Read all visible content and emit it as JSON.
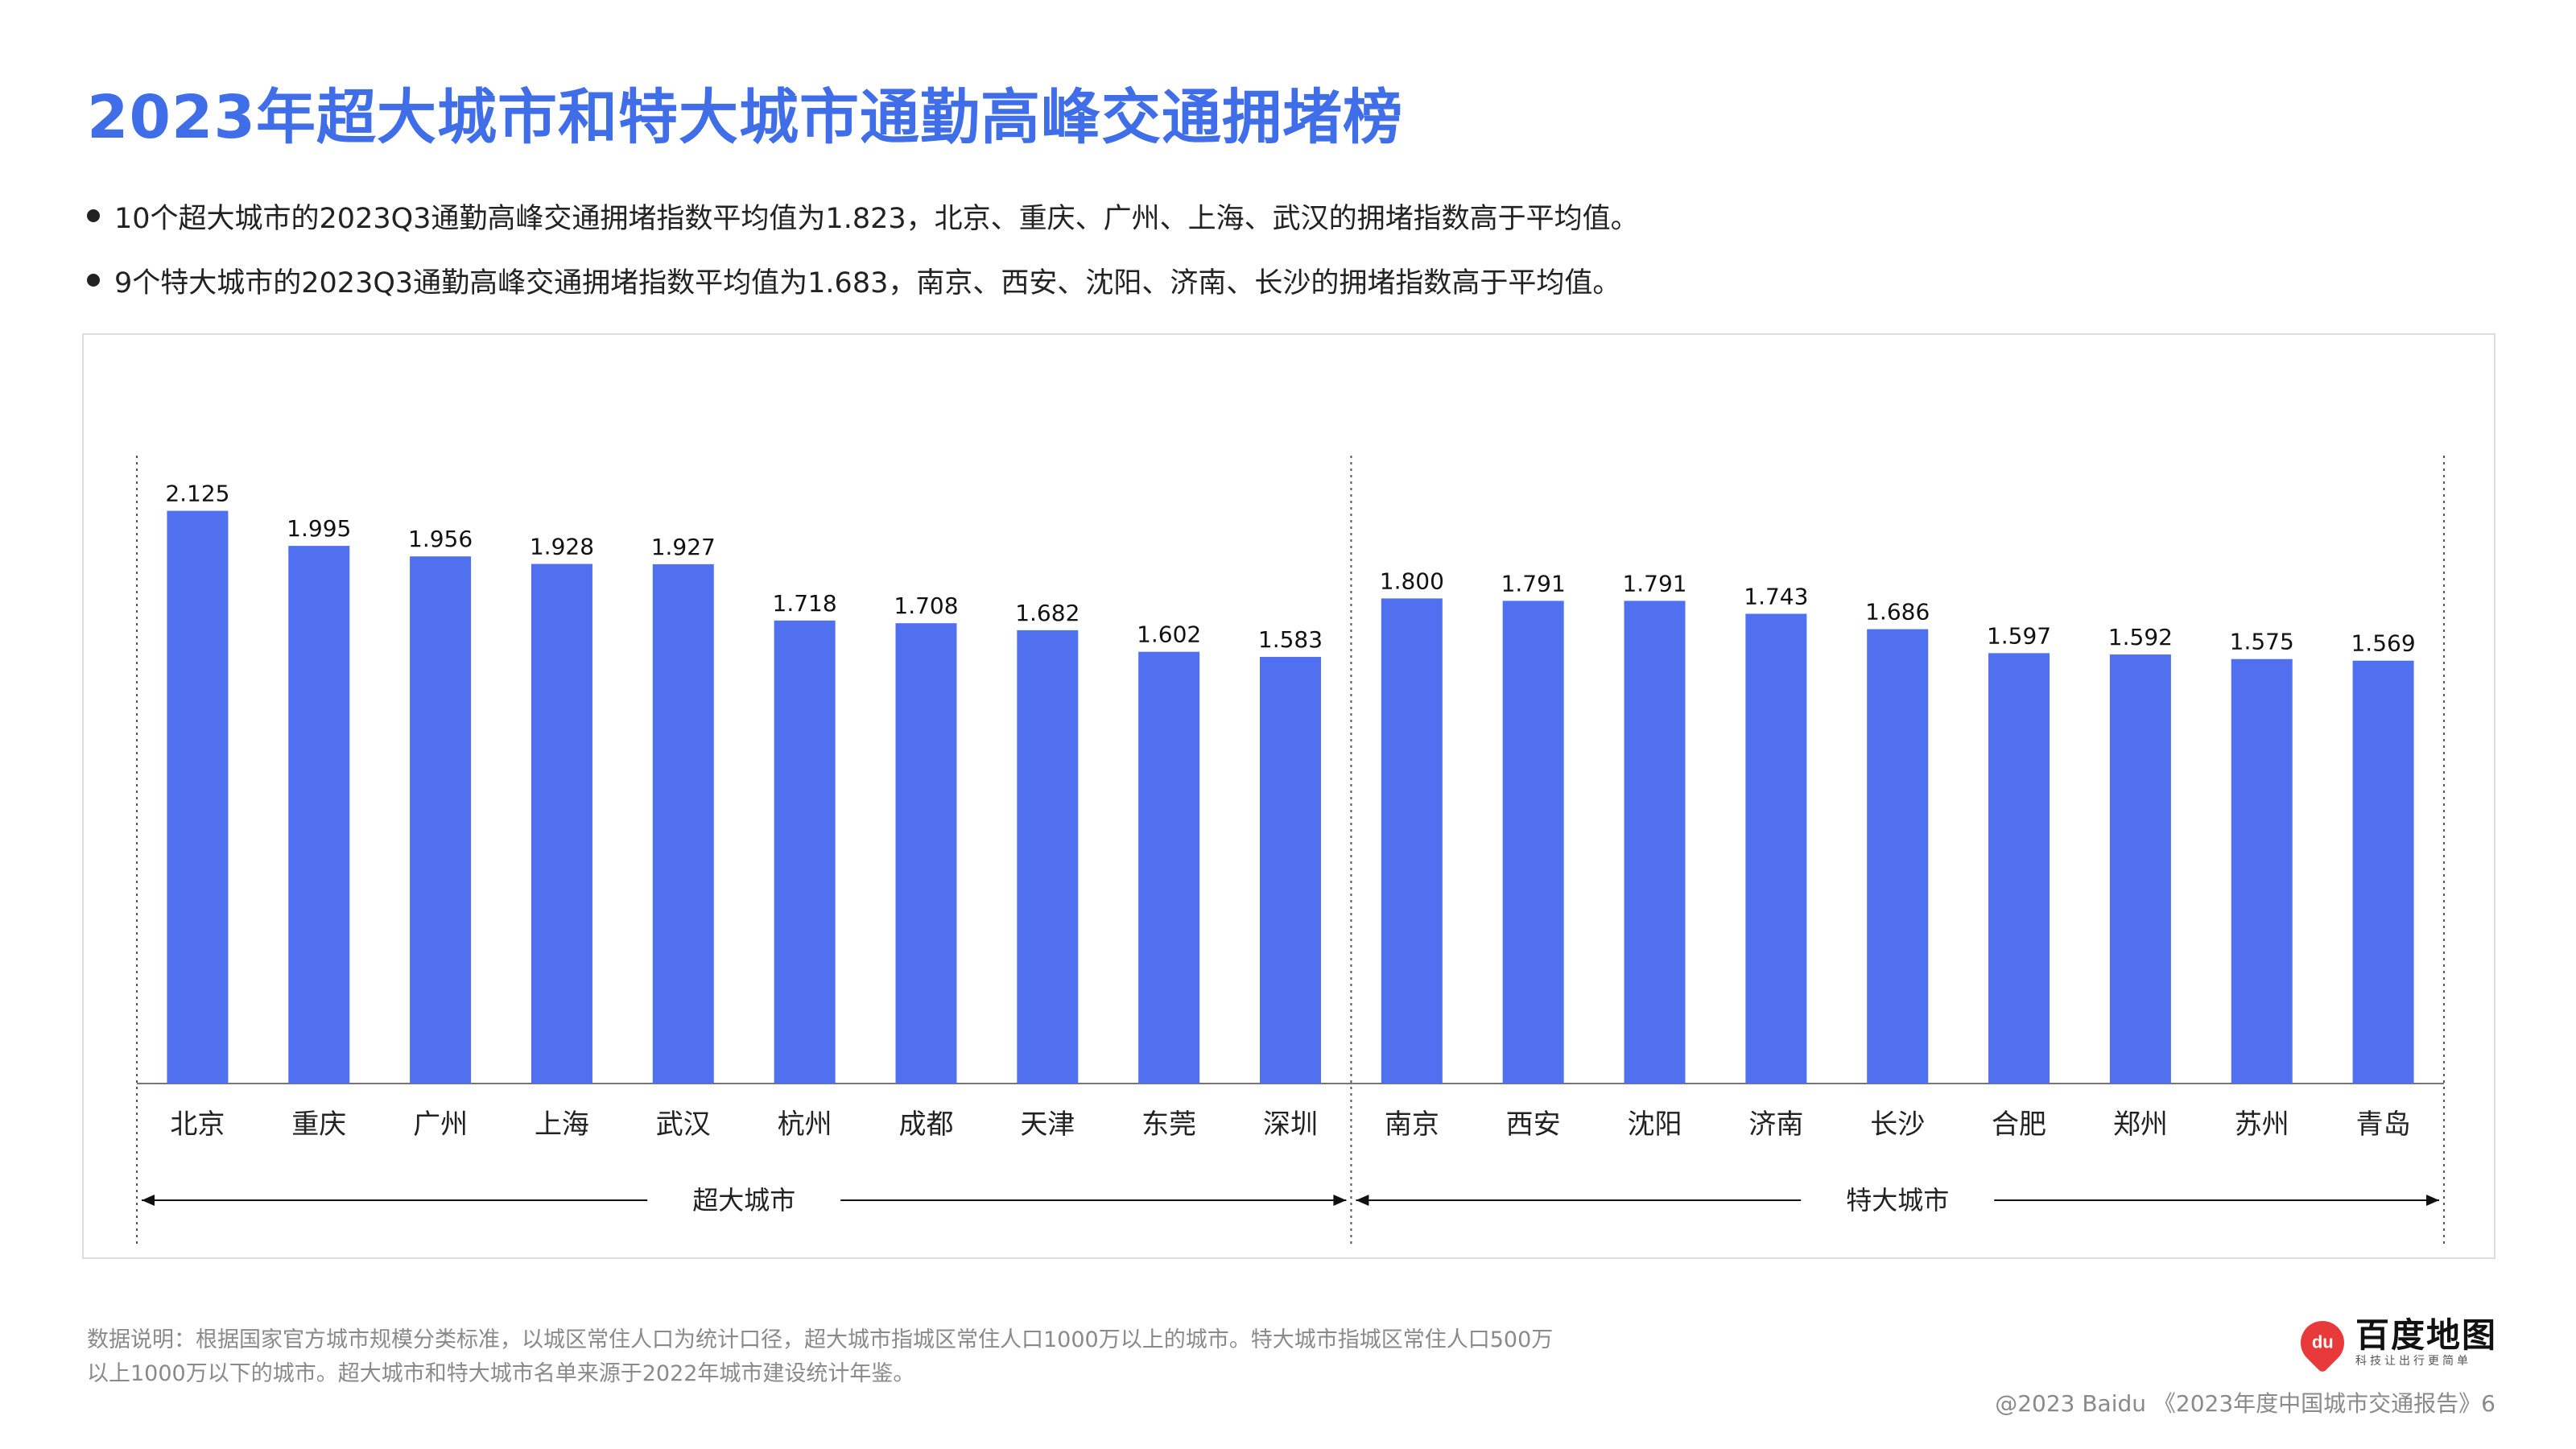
{
  "title": "2023年超大城市和特大城市通勤高峰交通拥堵榜",
  "bullets": [
    "10个超大城市的2023Q3通勤高峰交通拥堵指数平均值为1.823，北京、重庆、广州、上海、武汉的拥堵指数高于平均值。",
    "9个特大城市的2023Q3通勤高峰交通拥堵指数平均值为1.683，南京、西安、沈阳、济南、长沙的拥堵指数高于平均值。"
  ],
  "chart_data": {
    "type": "bar",
    "categories": [
      "北京",
      "重庆",
      "广州",
      "上海",
      "武汉",
      "杭州",
      "成都",
      "天津",
      "东莞",
      "深圳",
      "南京",
      "西安",
      "沈阳",
      "济南",
      "长沙",
      "合肥",
      "郑州",
      "苏州",
      "青岛"
    ],
    "values": [
      2.125,
      1.995,
      1.956,
      1.928,
      1.927,
      1.718,
      1.708,
      1.682,
      1.602,
      1.583,
      1.8,
      1.791,
      1.791,
      1.743,
      1.686,
      1.597,
      1.592,
      1.575,
      1.569
    ],
    "value_labels": [
      "2.125",
      "1.995",
      "1.956",
      "1.928",
      "1.927",
      "1.718",
      "1.708",
      "1.682",
      "1.602",
      "1.583",
      "1.800",
      "1.791",
      "1.791",
      "1.743",
      "1.686",
      "1.597",
      "1.592",
      "1.575",
      "1.569"
    ],
    "groups": [
      {
        "label": "超大城市",
        "count": 10
      },
      {
        "label": "特大城市",
        "count": 9
      }
    ],
    "ylim": [
      0,
      2.3
    ],
    "grid": false,
    "bar_color": "#5070ef"
  },
  "note": "数据说明：根据国家官方城市规模分类标准，以城区常住人口为统计口径，超大城市指城区常住人口1000万以上的城市。特大城市指城区常住人口500万以上1000万以下的城市。超大城市和特大城市名单来源于2022年城市建设统计年鉴。",
  "logo": {
    "mark": "du",
    "name": "百度地图",
    "slogan": "科技让出行更简单"
  },
  "footer": "@2023 Baidu 《2023年度中国城市交通报告》6",
  "colors": {
    "title": "#3f6ee8",
    "bar": "#5070ef",
    "brand": "#e83a3a"
  }
}
